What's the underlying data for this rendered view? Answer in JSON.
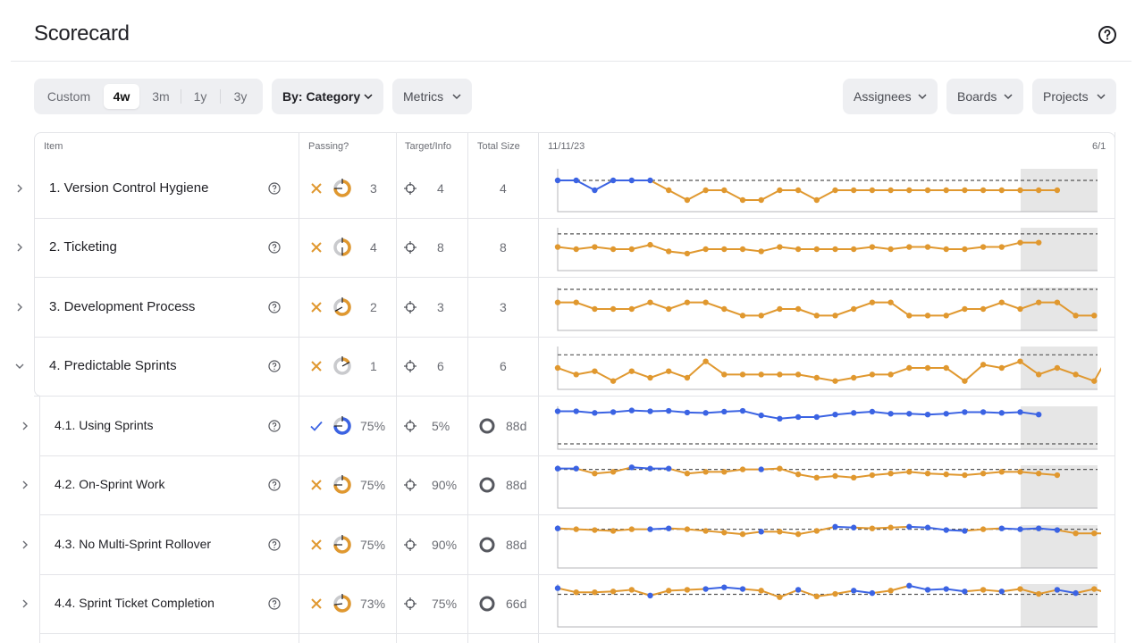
{
  "header": {
    "title": "Scorecard"
  },
  "timeframe": {
    "options": [
      "Custom",
      "4w",
      "3m",
      "1y",
      "3y"
    ],
    "selected": "4w"
  },
  "filters": {
    "group_by": "By: Category",
    "metrics": "Metrics",
    "assignees": "Assignees",
    "boards": "Boards",
    "projects": "Projects"
  },
  "columns": {
    "item": "Item",
    "passing": "Passing?",
    "target": "Target/Info",
    "size": "Total Size",
    "start": "11/11/23",
    "end": "6/1"
  },
  "colors": {
    "orange": "#e0982f",
    "blue": "#3b63e3",
    "grey_shade": "#e6e6e6"
  },
  "rows": [
    {
      "label": "1. Version Control Hygiene",
      "status": "fail",
      "passing": "3",
      "target": "4",
      "size": "4",
      "fill": 0.75,
      "values": [
        3,
        3,
        2,
        3,
        3,
        3,
        2,
        1,
        2,
        2,
        1,
        1,
        2,
        2,
        1,
        2,
        2,
        2,
        2,
        2,
        2,
        2,
        2,
        2,
        2,
        2,
        2,
        2
      ],
      "target_value": 3,
      "ymax": 4,
      "first_blue": 6
    },
    {
      "label": "2. Ticketing",
      "status": "fail",
      "passing": "4",
      "target": "8",
      "size": "8",
      "fill": 0.5,
      "values": [
        5,
        4.5,
        5,
        4.5,
        4.5,
        5.5,
        4,
        3.5,
        4.5,
        4.5,
        4.5,
        4,
        5,
        4.5,
        4.5,
        4.5,
        4.5,
        5,
        4.5,
        5,
        5,
        4.5,
        4.5,
        5,
        5,
        6,
        6
      ],
      "target_value": 8,
      "ymax": 9,
      "first_blue": 0
    },
    {
      "label": "3. Development Process",
      "status": "fail",
      "passing": "2",
      "target": "3",
      "size": "3",
      "fill": 0.67,
      "values": [
        2,
        2,
        1.5,
        1.5,
        1.5,
        2,
        1.5,
        2,
        2,
        1.5,
        1,
        1,
        1.5,
        1.5,
        1,
        1,
        1.5,
        2,
        2,
        1,
        1,
        1,
        1.5,
        1.5,
        2,
        1.5,
        2,
        2,
        1,
        1
      ],
      "target_value": 3,
      "ymax": 3,
      "first_blue": 0
    },
    {
      "label": "4. Predictable Sprints",
      "status": "fail",
      "passing": "1",
      "target": "6",
      "size": "6",
      "fill": 0.17,
      "values": [
        3,
        2,
        2.5,
        1,
        2.5,
        1.5,
        2.5,
        1.5,
        4,
        2,
        2,
        2,
        2,
        2,
        1.5,
        1,
        1.5,
        2,
        2,
        3,
        3,
        3,
        1,
        3.5,
        3,
        4,
        2,
        3,
        2,
        1,
        6
      ],
      "target_value": 5,
      "ymax": 6,
      "first_blue": 30,
      "last_blue_only": true
    }
  ],
  "subrows": [
    {
      "label": "4.1. Using Sprints",
      "status": "pass",
      "passing": "75%",
      "target": "5%",
      "size": "88d",
      "fill": 0.75,
      "values": [
        88,
        88,
        84,
        86,
        90,
        88,
        89,
        85,
        84,
        87,
        89,
        78,
        70,
        74,
        74,
        80,
        84,
        87,
        82,
        82,
        80,
        82,
        86,
        86,
        84,
        86,
        80
      ],
      "target_value": 5,
      "ymax": 100,
      "blue": true
    },
    {
      "label": "4.2. On-Sprint Work",
      "status": "fail",
      "passing": "75%",
      "target": "90%",
      "size": "88d",
      "fill": 0.75,
      "values": [
        92,
        92,
        80,
        84,
        95,
        92,
        92,
        80,
        84,
        84,
        90,
        90,
        92,
        78,
        70,
        74,
        70,
        76,
        80,
        84,
        80,
        78,
        76,
        80,
        84,
        84,
        80,
        76
      ],
      "target_value": 90,
      "ymax": 100,
      "blue_points": [
        0,
        1,
        4,
        5,
        6,
        11
      ]
    },
    {
      "label": "4.3. No Multi-Sprint Rollover",
      "status": "fail",
      "passing": "75%",
      "target": "90%",
      "size": "88d",
      "fill": 0.75,
      "values": [
        92,
        90,
        88,
        86,
        90,
        90,
        92,
        90,
        86,
        82,
        78,
        84,
        84,
        78,
        86,
        96,
        94,
        92,
        94,
        96,
        94,
        88,
        86,
        90,
        92,
        90,
        92,
        88,
        80,
        80,
        80
      ],
      "target_value": 90,
      "ymax": 100,
      "blue_points": [
        0,
        5,
        6,
        11,
        15,
        16,
        19,
        20,
        21,
        22,
        24,
        25,
        26,
        27
      ]
    },
    {
      "label": "4.4. Sprint Ticket Completion",
      "status": "fail",
      "passing": "73%",
      "target": "75%",
      "size": "66d",
      "fill": 0.73,
      "values": [
        90,
        80,
        80,
        82,
        86,
        72,
        84,
        86,
        88,
        92,
        88,
        84,
        68,
        86,
        70,
        76,
        84,
        78,
        84,
        96,
        86,
        88,
        82,
        86,
        82,
        88,
        76,
        86,
        78,
        88,
        74
      ],
      "target_value": 75,
      "ymax": 100,
      "blue_points": [
        0,
        5,
        8,
        9,
        10,
        13,
        16,
        17,
        19,
        20,
        21,
        22,
        24,
        27,
        28
      ]
    }
  ]
}
